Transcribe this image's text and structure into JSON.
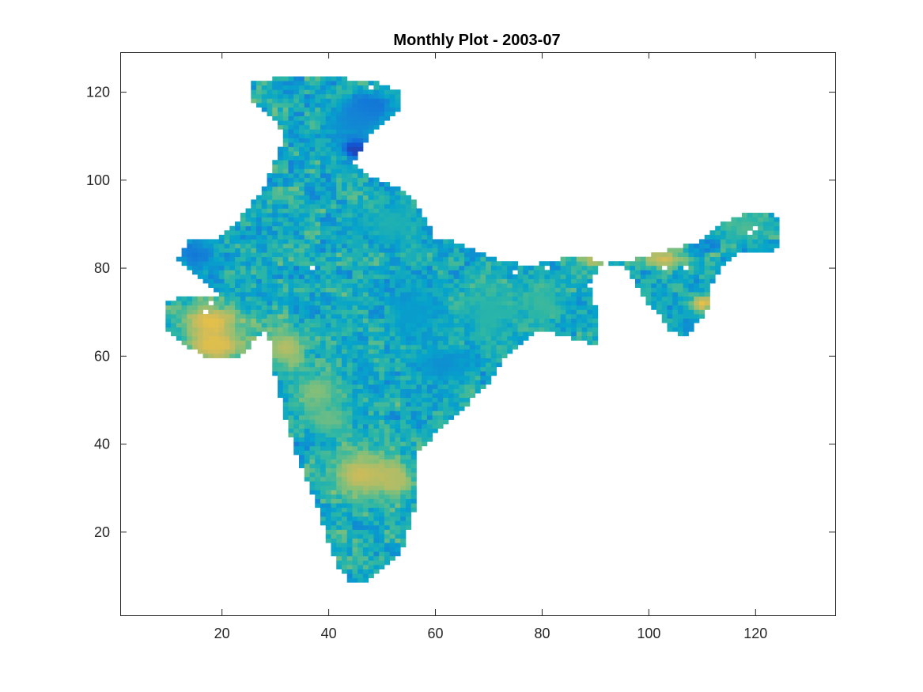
{
  "chart_data": {
    "type": "heatmap",
    "title": "Monthly Plot - 2003-07",
    "xlabel": "",
    "ylabel": "",
    "xlim": [
      1,
      135
    ],
    "ylim": [
      1,
      129
    ],
    "x_ticks": [
      20,
      40,
      60,
      80,
      100,
      120
    ],
    "x_tick_labels": [
      "20",
      "40",
      "60",
      "80",
      "100",
      "120"
    ],
    "y_ticks": [
      20,
      40,
      60,
      80,
      100,
      120
    ],
    "y_tick_labels": [
      "20",
      "40",
      "60",
      "80",
      "100",
      "120"
    ],
    "grid": false,
    "colormap": "parula",
    "colormap_stops": [
      "#352a87",
      "#0f5cdd",
      "#1481d6",
      "#06a4ca",
      "#2eb7a4",
      "#87bf77",
      "#d1bb59",
      "#fec832",
      "#f9fb0e"
    ],
    "region_outline": [
      [
        44,
        9
      ],
      [
        48,
        9
      ],
      [
        51,
        12
      ],
      [
        54,
        16
      ],
      [
        55,
        20
      ],
      [
        57,
        28
      ],
      [
        57,
        38
      ],
      [
        60,
        42
      ],
      [
        64,
        46
      ],
      [
        67,
        50
      ],
      [
        71,
        55
      ],
      [
        73,
        59
      ],
      [
        76,
        62
      ],
      [
        80,
        66
      ],
      [
        86,
        64
      ],
      [
        91,
        62
      ],
      [
        91,
        68
      ],
      [
        89,
        76
      ],
      [
        91,
        80
      ],
      [
        94,
        82
      ],
      [
        98,
        82
      ],
      [
        104,
        84
      ],
      [
        110,
        86
      ],
      [
        114,
        90
      ],
      [
        120,
        93
      ],
      [
        123,
        93
      ],
      [
        125,
        90
      ],
      [
        124,
        84
      ],
      [
        118,
        84
      ],
      [
        114,
        80
      ],
      [
        112,
        76
      ],
      [
        111,
        70
      ],
      [
        107,
        64
      ],
      [
        104,
        66
      ],
      [
        102,
        70
      ],
      [
        100,
        72
      ],
      [
        98,
        76
      ],
      [
        96,
        80
      ],
      [
        92,
        81
      ],
      [
        88,
        83
      ],
      [
        84,
        82
      ],
      [
        80,
        81
      ],
      [
        76,
        81
      ],
      [
        72,
        82
      ],
      [
        68,
        84
      ],
      [
        64,
        86
      ],
      [
        60,
        87
      ],
      [
        58,
        92
      ],
      [
        56,
        96
      ],
      [
        52,
        99
      ],
      [
        48,
        101
      ],
      [
        45,
        104
      ],
      [
        48,
        110
      ],
      [
        53,
        115
      ],
      [
        54,
        120
      ],
      [
        50,
        122
      ],
      [
        44,
        123
      ],
      [
        36,
        124
      ],
      [
        30,
        123
      ],
      [
        26,
        122
      ],
      [
        26,
        118
      ],
      [
        30,
        114
      ],
      [
        32,
        110
      ],
      [
        30,
        104
      ],
      [
        28,
        98
      ],
      [
        24,
        92
      ],
      [
        20,
        87
      ],
      [
        14,
        86
      ],
      [
        12,
        82
      ],
      [
        16,
        78
      ],
      [
        20,
        74
      ],
      [
        14,
        74
      ],
      [
        10,
        72
      ],
      [
        10,
        66
      ],
      [
        14,
        62
      ],
      [
        18,
        59
      ],
      [
        24,
        60
      ],
      [
        28,
        66
      ],
      [
        30,
        62
      ],
      [
        30,
        56
      ],
      [
        32,
        46
      ],
      [
        34,
        38
      ],
      [
        36,
        32
      ],
      [
        38,
        26
      ],
      [
        40,
        18
      ],
      [
        42,
        12
      ]
    ],
    "features": [
      {
        "x": 45,
        "y": 107,
        "rx": 2.5,
        "ry": 2,
        "value": 0.02
      },
      {
        "x": 48,
        "y": 117,
        "rx": 4,
        "ry": 3,
        "value": 0.2
      },
      {
        "x": 45,
        "y": 113,
        "rx": 6,
        "ry": 5,
        "value": 0.28
      },
      {
        "x": 15,
        "y": 83,
        "rx": 4,
        "ry": 3.5,
        "value": 0.22
      },
      {
        "x": 18,
        "y": 68,
        "rx": 6,
        "ry": 4,
        "value": 0.8
      },
      {
        "x": 19,
        "y": 62,
        "rx": 6,
        "ry": 3,
        "value": 0.78
      },
      {
        "x": 32,
        "y": 62,
        "rx": 4,
        "ry": 5,
        "value": 0.7
      },
      {
        "x": 46,
        "y": 33,
        "rx": 6,
        "ry": 6,
        "value": 0.74
      },
      {
        "x": 53,
        "y": 32,
        "rx": 3,
        "ry": 4,
        "value": 0.68
      },
      {
        "x": 38,
        "y": 52,
        "rx": 5,
        "ry": 4,
        "value": 0.62
      },
      {
        "x": 62,
        "y": 58,
        "rx": 6,
        "ry": 4,
        "value": 0.3
      },
      {
        "x": 56,
        "y": 70,
        "rx": 5,
        "ry": 6,
        "value": 0.35
      },
      {
        "x": 70,
        "y": 70,
        "rx": 5,
        "ry": 6,
        "value": 0.48
      },
      {
        "x": 52,
        "y": 90,
        "rx": 5,
        "ry": 5,
        "value": 0.45
      },
      {
        "x": 80,
        "y": 72,
        "rx": 4,
        "ry": 5,
        "value": 0.52
      },
      {
        "x": 90,
        "y": 82,
        "rx": 3,
        "ry": 2,
        "value": 0.72
      },
      {
        "x": 103,
        "y": 82,
        "rx": 4,
        "ry": 2,
        "value": 0.76
      },
      {
        "x": 110,
        "y": 72,
        "rx": 2,
        "ry": 2,
        "value": 0.82
      },
      {
        "x": 118,
        "y": 89,
        "rx": 4,
        "ry": 3,
        "value": 0.55
      },
      {
        "x": 108,
        "y": 67,
        "rx": 2,
        "ry": 3,
        "value": 0.3
      },
      {
        "x": 40,
        "y": 45,
        "rx": 4,
        "ry": 3,
        "value": 0.58
      }
    ],
    "gaps": [
      [
        17,
        70
      ],
      [
        18,
        72
      ],
      [
        37,
        80
      ],
      [
        75,
        79
      ],
      [
        81,
        80
      ],
      [
        103,
        80
      ],
      [
        107,
        80
      ],
      [
        119,
        88
      ],
      [
        120,
        89
      ],
      [
        47,
        123
      ],
      [
        48,
        121
      ]
    ]
  }
}
